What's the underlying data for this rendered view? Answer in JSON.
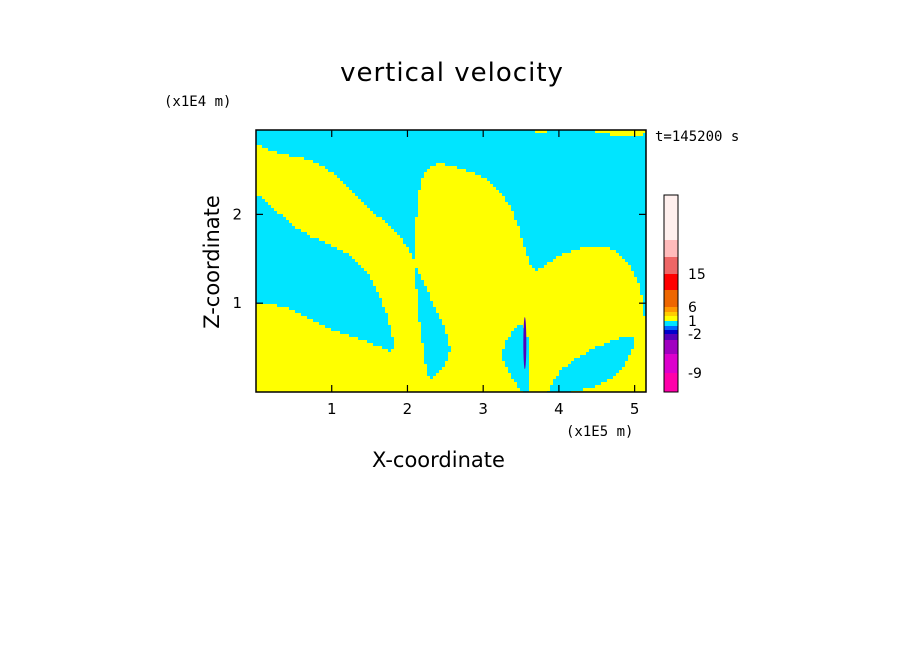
{
  "chart_data": {
    "type": "heatmap",
    "title": "vertical velocity",
    "xlabel": "X-coordinate",
    "ylabel": "Z-coordinate",
    "x_unit": "(x1E5 m)",
    "y_unit": "(x1E4 m)",
    "time_label": "t=145200 s",
    "xlim": [
      0,
      5.15
    ],
    "ylim": [
      0,
      2.95
    ],
    "x_ticks": [
      1,
      2,
      3,
      4,
      5
    ],
    "y_ticks": [
      1,
      2
    ],
    "x_tick_labels": [
      "1",
      "2",
      "3",
      "4",
      "5"
    ],
    "y_tick_labels": [
      "1",
      "2"
    ],
    "colorbar": {
      "labels": [
        {
          "text": "15",
          "value": 15
        },
        {
          "text": "6",
          "value": 6
        },
        {
          "text": "1",
          "value": 1
        },
        {
          "text": "-2",
          "value": -2
        },
        {
          "text": "-9",
          "value": -9
        }
      ],
      "levels": [
        {
          "color": "#ff00aa"
        },
        {
          "color": "#dd00cc"
        },
        {
          "color": "#a000c0"
        },
        {
          "color": "#5500bb"
        },
        {
          "color": "#0000cc"
        },
        {
          "color": "#0066ff"
        },
        {
          "color": "#00e5ff"
        },
        {
          "color": "#ffff00"
        },
        {
          "color": "#ffcc00"
        },
        {
          "color": "#ff9900"
        },
        {
          "color": "#ee6600"
        },
        {
          "color": "#ff0000"
        },
        {
          "color": "#ee6666"
        },
        {
          "color": "#ffbbbb"
        },
        {
          "color": "#fff0ee"
        }
      ]
    },
    "field_colors": {
      "positive": "#ffff00",
      "negative": "#00e5ff"
    }
  }
}
